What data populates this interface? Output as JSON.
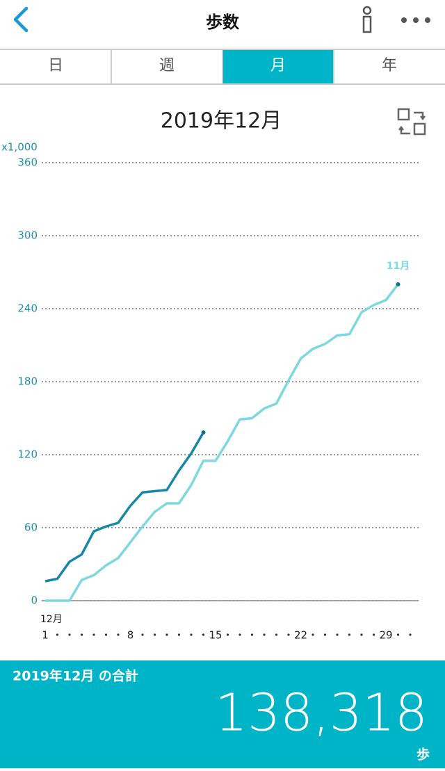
{
  "header": {
    "title": "歩数"
  },
  "tabs": {
    "items": [
      "日",
      "週",
      "月",
      "年"
    ],
    "active": 2
  },
  "chart_data": {
    "type": "line",
    "title": "2019年12月",
    "y_axis_label": "x1,000",
    "categories": [
      "1",
      null,
      null,
      null,
      null,
      null,
      null,
      "8",
      null,
      null,
      null,
      null,
      null,
      null,
      "15",
      null,
      null,
      null,
      null,
      null,
      null,
      "22",
      null,
      null,
      null,
      null,
      null,
      null,
      "29",
      null,
      null
    ],
    "ylim": [
      0,
      360
    ],
    "yticks": [
      0,
      60,
      120,
      180,
      240,
      300,
      360
    ],
    "grid": true,
    "series": [
      {
        "name": "12月",
        "color": "#1787a6",
        "values": [
          16,
          18,
          32,
          38,
          57,
          61,
          64,
          78,
          89,
          90,
          91,
          107,
          121,
          138.3,
          null,
          null,
          null,
          null,
          null,
          null,
          null,
          null,
          null,
          null,
          null,
          null,
          null,
          null,
          null,
          null,
          null
        ]
      },
      {
        "name": "11月",
        "color": "#7dd8e0",
        "values": [
          0,
          0,
          0,
          17,
          21,
          29,
          35,
          48,
          61,
          73,
          80,
          80,
          95,
          115,
          115,
          131,
          149,
          150,
          158,
          162,
          181,
          199,
          207,
          211,
          218,
          219,
          237,
          243,
          247,
          260,
          null
        ]
      }
    ]
  },
  "summary": {
    "label": "2019年12月 の合計",
    "total": "138,318",
    "unit": "歩"
  }
}
